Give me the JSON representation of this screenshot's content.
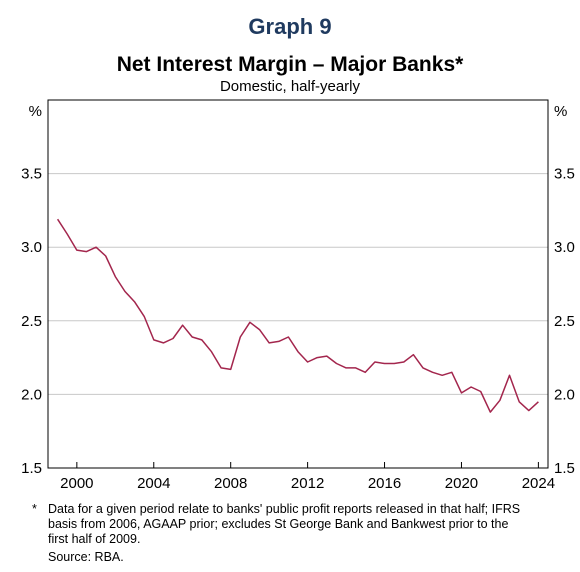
{
  "header": {
    "graph_label": "Graph 9",
    "title": "Net Interest Margin – Major Banks*",
    "subtitle": "Domestic, half-yearly"
  },
  "footer": {
    "footnote_marker": "*",
    "footnote_text": "Data for a given period relate to banks' public profit reports released in that half; IFRS basis from 2006, AGAAP prior; excludes St George Bank and Bankwest prior to the first half of 2009.",
    "source": "Source: RBA."
  },
  "chart_data": {
    "type": "line",
    "title": "Net Interest Margin – Major Banks*",
    "subtitle": "Domestic, half-yearly",
    "y_unit_left": "%",
    "y_unit_right": "%",
    "ylim": [
      1.5,
      4.0
    ],
    "yticks": [
      1.5,
      2.0,
      2.5,
      3.0,
      3.5
    ],
    "ytick_labels": [
      "1.5",
      "2.0",
      "2.5",
      "3.0",
      "3.5"
    ],
    "xlim": [
      1998.5,
      2024.5
    ],
    "xticks": [
      2000,
      2004,
      2008,
      2012,
      2016,
      2020,
      2024
    ],
    "xtick_labels": [
      "2000",
      "2004",
      "2008",
      "2012",
      "2016",
      "2020",
      "2024"
    ],
    "grid": true,
    "line_color": "#a3264d",
    "series": [
      {
        "x": [
          1999.0,
          1999.5,
          2000.0,
          2000.5,
          2001.0,
          2001.5,
          2002.0,
          2002.5,
          2003.0,
          2003.5,
          2004.0,
          2004.5,
          2005.0,
          2005.5,
          2006.0,
          2006.5,
          2007.0,
          2007.5,
          2008.0,
          2008.5,
          2009.0,
          2009.5,
          2010.0,
          2010.5,
          2011.0,
          2011.5,
          2012.0,
          2012.5,
          2013.0,
          2013.5,
          2014.0,
          2014.5,
          2015.0,
          2015.5,
          2016.0,
          2016.5,
          2017.0,
          2017.5,
          2018.0,
          2018.5,
          2019.0,
          2019.5,
          2020.0,
          2020.5,
          2021.0,
          2021.5,
          2022.0,
          2022.5,
          2023.0,
          2023.5,
          2024.0
        ],
        "y": [
          3.19,
          3.09,
          2.98,
          2.97,
          3.0,
          2.94,
          2.8,
          2.7,
          2.63,
          2.53,
          2.37,
          2.35,
          2.38,
          2.47,
          2.39,
          2.37,
          2.29,
          2.18,
          2.17,
          2.39,
          2.49,
          2.44,
          2.35,
          2.36,
          2.39,
          2.29,
          2.22,
          2.25,
          2.26,
          2.21,
          2.18,
          2.18,
          2.15,
          2.22,
          2.21,
          2.21,
          2.22,
          2.27,
          2.18,
          2.15,
          2.13,
          2.15,
          2.01,
          2.05,
          2.02,
          1.88,
          1.96,
          2.13,
          1.95,
          1.89,
          1.95
        ]
      }
    ]
  }
}
